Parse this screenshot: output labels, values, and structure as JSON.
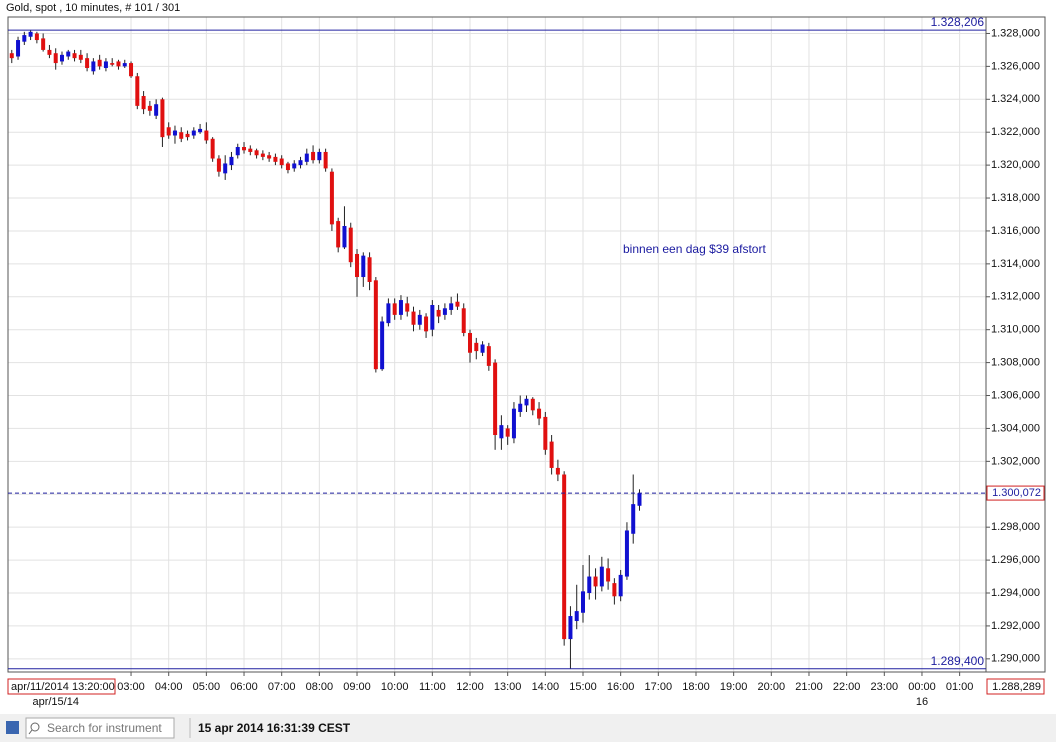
{
  "chart_data": {
    "type": "candlestick",
    "title": "Gold, spot , 10 minutes, # 101 / 301",
    "annotation": "binnen een dag $39 afstort",
    "start_label": "apr/11/2014 13:20:00",
    "corner_value": "1.288,289",
    "search_placeholder": "Search for instrument",
    "timestamp": "15 apr 2014 16:31:39 CEST",
    "up_color": "#1010d0",
    "down_color": "#e01010",
    "grid": true,
    "xlim": [
      -0.6,
      155.2
    ],
    "ylim": [
      1289.2,
      1329.0
    ],
    "xticks": [
      {
        "value": 19,
        "label": "03:00"
      },
      {
        "value": 25,
        "label": "04:00"
      },
      {
        "value": 31,
        "label": "05:00"
      },
      {
        "value": 37,
        "label": "06:00"
      },
      {
        "value": 43,
        "label": "07:00"
      },
      {
        "value": 49,
        "label": "08:00"
      },
      {
        "value": 55,
        "label": "09:00"
      },
      {
        "value": 61,
        "label": "10:00"
      },
      {
        "value": 67,
        "label": "11:00"
      },
      {
        "value": 73,
        "label": "12:00"
      },
      {
        "value": 79,
        "label": "13:00"
      },
      {
        "value": 85,
        "label": "14:00"
      },
      {
        "value": 91,
        "label": "15:00"
      },
      {
        "value": 97,
        "label": "16:00"
      },
      {
        "value": 103,
        "label": "17:00"
      },
      {
        "value": 109,
        "label": "18:00"
      },
      {
        "value": 115,
        "label": "19:00"
      },
      {
        "value": 121,
        "label": "20:00"
      },
      {
        "value": 127,
        "label": "21:00"
      },
      {
        "value": 133,
        "label": "22:00"
      },
      {
        "value": 139,
        "label": "23:00"
      },
      {
        "value": 145,
        "label": "00:00"
      },
      {
        "value": 151,
        "label": "01:00"
      }
    ],
    "date_labels": [
      {
        "value": 7,
        "label": "apr/15/14"
      },
      {
        "value": 145,
        "label": "16"
      }
    ],
    "yticks": [
      {
        "value": 1290,
        "label": "1.290,000"
      },
      {
        "value": 1292,
        "label": "1.292,000"
      },
      {
        "value": 1294,
        "label": "1.294,000"
      },
      {
        "value": 1296,
        "label": "1.296,000"
      },
      {
        "value": 1298,
        "label": "1.298,000"
      },
      {
        "value": 1300,
        "label": "1.300,000"
      },
      {
        "value": 1302,
        "label": "1.302,000"
      },
      {
        "value": 1304,
        "label": "1.304,000"
      },
      {
        "value": 1306,
        "label": "1.306,000"
      },
      {
        "value": 1308,
        "label": "1.308,000"
      },
      {
        "value": 1310,
        "label": "1.310,000"
      },
      {
        "value": 1312,
        "label": "1.312,000"
      },
      {
        "value": 1314,
        "label": "1.314,000"
      },
      {
        "value": 1316,
        "label": "1.316,000"
      },
      {
        "value": 1318,
        "label": "1.318,000"
      },
      {
        "value": 1320,
        "label": "1.320,000"
      },
      {
        "value": 1322,
        "label": "1.322,000"
      },
      {
        "value": 1324,
        "label": "1.324,000"
      },
      {
        "value": 1326,
        "label": "1.326,000"
      },
      {
        "value": 1328,
        "label": "1.328,000"
      }
    ],
    "reference_lines": [
      {
        "value": 1328.206,
        "label": "1.328,206",
        "style": "high"
      },
      {
        "value": 1289.4,
        "label": "1.289,400",
        "style": "low"
      },
      {
        "value": 1300.072,
        "label": "1.300,072",
        "style": "current"
      }
    ],
    "open": [
      1326.8,
      1326.6,
      1327.5,
      1327.8,
      1328.0,
      1327.7,
      1327.0,
      1326.8,
      1326.3,
      1326.6,
      1326.8,
      1326.7,
      1326.5,
      1325.7,
      1326.4,
      1325.9,
      1326.2,
      1326.3,
      1326.0,
      1326.2,
      1325.4,
      1324.2,
      1323.6,
      1323.0,
      1324.0,
      1322.3,
      1321.8,
      1322.0,
      1321.9,
      1321.8,
      1322.0,
      1322.1,
      1321.6,
      1320.4,
      1319.5,
      1320.0,
      1320.6,
      1321.1,
      1321.0,
      1320.9,
      1320.7,
      1320.6,
      1320.5,
      1320.4,
      1320.1,
      1319.8,
      1320.0,
      1320.2,
      1320.8,
      1320.3,
      1320.8,
      1319.6,
      1316.6,
      1315.0,
      1316.2,
      1314.6,
      1313.2,
      1314.4,
      1313.0,
      1307.6,
      1310.4,
      1311.6,
      1310.9,
      1311.6,
      1311.1,
      1310.3,
      1310.8,
      1310.0,
      1311.2,
      1310.9,
      1311.2,
      1311.7,
      1311.3,
      1309.8,
      1309.2,
      1308.6,
      1309.0,
      1308.0,
      1303.4,
      1304.0,
      1303.4,
      1305.0,
      1305.4,
      1305.8,
      1305.2,
      1304.7,
      1303.2,
      1301.6,
      1301.2,
      1291.2,
      1292.3,
      1292.8,
      1294.0,
      1295.0,
      1294.4,
      1295.5,
      1294.6,
      1293.8,
      1295.0,
      1297.6,
      1299.3
    ],
    "high": [
      1327.0,
      1327.8,
      1328.1,
      1328.206,
      1328.1,
      1328.0,
      1327.3,
      1327.1,
      1326.9,
      1327.0,
      1327.0,
      1327.0,
      1326.8,
      1326.5,
      1326.7,
      1326.5,
      1326.5,
      1326.4,
      1326.4,
      1326.3,
      1325.6,
      1324.5,
      1323.9,
      1324.0,
      1324.1,
      1322.6,
      1322.4,
      1322.3,
      1322.1,
      1322.3,
      1322.5,
      1322.6,
      1321.7,
      1320.6,
      1320.6,
      1320.8,
      1321.3,
      1321.4,
      1321.2,
      1321.0,
      1320.9,
      1320.8,
      1320.7,
      1320.6,
      1320.2,
      1320.3,
      1320.5,
      1321.0,
      1321.2,
      1321.0,
      1321.0,
      1319.8,
      1316.8,
      1317.5,
      1316.5,
      1314.9,
      1314.7,
      1314.7,
      1313.2,
      1310.8,
      1311.9,
      1311.9,
      1312.1,
      1312.0,
      1311.4,
      1311.2,
      1311.0,
      1311.8,
      1311.5,
      1311.6,
      1312.0,
      1312.2,
      1311.6,
      1310.0,
      1309.5,
      1309.3,
      1309.2,
      1308.2,
      1304.8,
      1304.2,
      1305.6,
      1306.0,
      1306.0,
      1305.9,
      1305.6,
      1305.0,
      1303.6,
      1302.1,
      1301.4,
      1293.2,
      1294.5,
      1295.7,
      1296.3,
      1295.5,
      1296.2,
      1296.1,
      1294.9,
      1295.4,
      1298.3,
      1301.2,
      1300.3
    ],
    "low": [
      1326.2,
      1326.4,
      1327.3,
      1327.6,
      1327.4,
      1326.9,
      1326.5,
      1325.8,
      1326.1,
      1326.4,
      1326.3,
      1326.2,
      1325.7,
      1325.5,
      1325.8,
      1325.7,
      1326.0,
      1325.8,
      1325.9,
      1325.3,
      1323.4,
      1323.1,
      1323.0,
      1322.8,
      1321.1,
      1321.6,
      1321.3,
      1321.4,
      1321.5,
      1321.6,
      1321.9,
      1321.3,
      1320.2,
      1319.3,
      1319.1,
      1319.7,
      1320.4,
      1320.7,
      1320.6,
      1320.4,
      1320.3,
      1320.2,
      1320.0,
      1319.8,
      1319.5,
      1319.6,
      1319.8,
      1320.0,
      1320.1,
      1320.1,
      1319.6,
      1316.0,
      1314.7,
      1314.9,
      1313.8,
      1312.0,
      1312.6,
      1312.4,
      1307.4,
      1307.5,
      1310.2,
      1310.6,
      1310.6,
      1310.8,
      1309.9,
      1310.0,
      1309.5,
      1309.6,
      1310.4,
      1310.6,
      1310.9,
      1311.2,
      1309.6,
      1308.0,
      1308.2,
      1308.4,
      1307.5,
      1302.7,
      1302.7,
      1303.0,
      1303.1,
      1304.7,
      1305.0,
      1304.8,
      1304.2,
      1302.4,
      1301.2,
      1300.8,
      1290.8,
      1289.4,
      1291.8,
      1292.2,
      1293.6,
      1293.6,
      1294.1,
      1294.2,
      1293.3,
      1293.5,
      1294.8,
      1297.0,
      1299.0
    ],
    "close": [
      1326.5,
      1327.6,
      1327.9,
      1328.1,
      1327.6,
      1327.0,
      1326.7,
      1326.2,
      1326.7,
      1326.9,
      1326.5,
      1326.4,
      1325.9,
      1326.3,
      1326.0,
      1326.3,
      1326.1,
      1326.0,
      1326.2,
      1325.4,
      1323.6,
      1323.4,
      1323.3,
      1323.7,
      1321.7,
      1321.8,
      1322.1,
      1321.6,
      1321.7,
      1322.1,
      1322.2,
      1321.5,
      1320.4,
      1319.6,
      1320.1,
      1320.5,
      1321.1,
      1320.9,
      1320.8,
      1320.6,
      1320.5,
      1320.4,
      1320.2,
      1320.0,
      1319.7,
      1320.1,
      1320.3,
      1320.7,
      1320.3,
      1320.8,
      1319.8,
      1316.4,
      1315.0,
      1316.3,
      1314.1,
      1313.2,
      1314.5,
      1312.9,
      1307.6,
      1310.5,
      1311.6,
      1310.9,
      1311.8,
      1311.1,
      1310.3,
      1310.9,
      1309.9,
      1311.5,
      1310.8,
      1311.3,
      1311.6,
      1311.4,
      1309.8,
      1308.6,
      1308.7,
      1309.1,
      1307.8,
      1303.6,
      1304.2,
      1303.5,
      1305.2,
      1305.5,
      1305.8,
      1305.1,
      1304.6,
      1302.7,
      1301.6,
      1301.2,
      1291.2,
      1292.6,
      1292.9,
      1294.1,
      1295.0,
      1294.4,
      1295.6,
      1294.7,
      1293.8,
      1295.1,
      1297.8,
      1299.4,
      1300.072
    ]
  }
}
